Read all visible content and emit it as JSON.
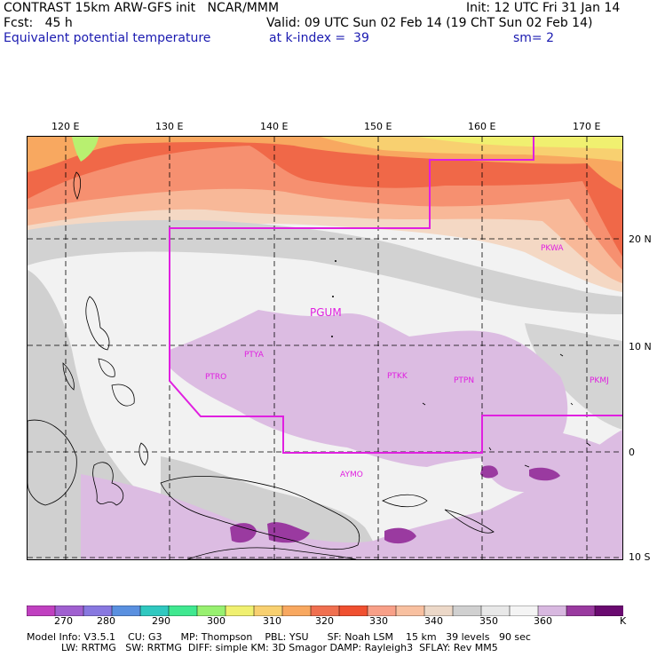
{
  "header": {
    "line1_left": "CONTRAST 15km ARW-GFS init   NCAR/MMM",
    "line1_right": "Init: 12 UTC Fri 31 Jan 14",
    "fcst": "Fcst:   45 h",
    "valid": "Valid: 09 UTC Sun 02 Feb 14 (19 ChT Sun 02 Feb 14)",
    "field": "Equivalent potential temperature",
    "level": "at k-index =  39",
    "smooth": "sm= 2"
  },
  "map": {
    "lon_labels": [
      "120 E",
      "130 E",
      "140 E",
      "150 E",
      "160 E",
      "170 E"
    ],
    "lat_labels": [
      "20 N",
      "10 N",
      "0",
      "10 S"
    ],
    "stations": [
      "PGUM",
      "PTYA",
      "PTRO",
      "PTKK",
      "PTPN",
      "PKWA",
      "PKMJ",
      "AYMO"
    ]
  },
  "colorbar": {
    "labels": [
      "270",
      "280",
      "290",
      "300",
      "310",
      "320",
      "330",
      "340",
      "350",
      "360"
    ],
    "unit": "K",
    "colors": [
      "#c040c0",
      "#a060d0",
      "#8878e0",
      "#5a90e0",
      "#30c8c0",
      "#40e890",
      "#98f070",
      "#f0f070",
      "#f8d070",
      "#f8a860",
      "#f07050",
      "#f05030",
      "#f8a088",
      "#f8c0a0",
      "#ecd8c8",
      "#d0d0d0",
      "#e8e8e8",
      "#f4f4f4",
      "#d8b8e0",
      "#9a3aa0",
      "#6a0a70"
    ]
  },
  "model_info": {
    "line1": "Model Info: V3.5.1    CU: G3      MP: Thompson    PBL: YSU      SF: Noah LSM    15 km   39 levels   90 sec",
    "line2": "LW: RRTMG   SW: RRTMG  DIFF: simple KM: 3D Smagor DAMP: Rayleigh3  SFLAY: Rev MM5"
  }
}
